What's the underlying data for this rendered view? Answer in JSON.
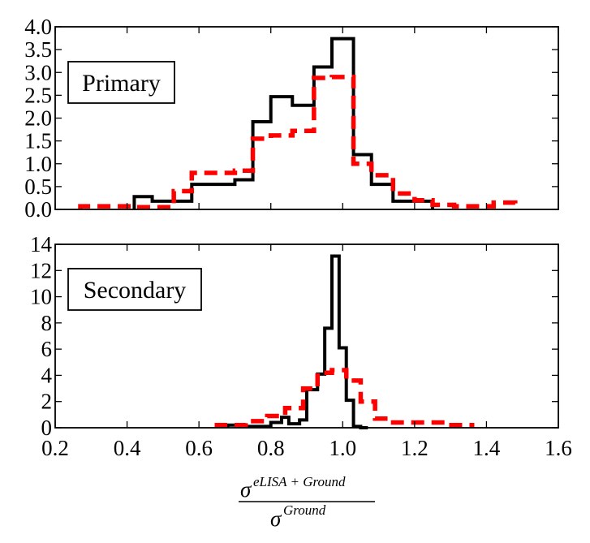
{
  "chart_data": [
    {
      "type": "histogram",
      "panel": "top",
      "legend_label": "Primary",
      "xlim": [
        0.2,
        1.6
      ],
      "ylim": [
        0.0,
        4.0
      ],
      "yticks": [
        "0.0",
        "0.5",
        "1.0",
        "1.5",
        "2.0",
        "2.5",
        "3.0",
        "3.5",
        "4.0"
      ],
      "ytick_values": [
        0.0,
        0.5,
        1.0,
        1.5,
        2.0,
        2.5,
        3.0,
        3.5,
        4.0
      ],
      "series": [
        {
          "name": "eLISA+Ground (solid)",
          "color": "#000000",
          "style": "solid",
          "edges": [
            0.42,
            0.47,
            0.53,
            0.58,
            0.64,
            0.7,
            0.75,
            0.8,
            0.86,
            0.92,
            0.97,
            1.03,
            1.08,
            1.14,
            1.2,
            1.25
          ],
          "values": [
            0.28,
            0.18,
            0.18,
            0.55,
            0.55,
            0.65,
            1.92,
            2.47,
            2.28,
            3.12,
            3.74,
            1.2,
            0.55,
            0.18,
            0.18
          ]
        },
        {
          "name": "Ground (dashed)",
          "color": "#ff0000",
          "style": "dashed",
          "edges": [
            0.27,
            0.37,
            0.42,
            0.47,
            0.53,
            0.58,
            0.64,
            0.7,
            0.75,
            0.8,
            0.86,
            0.92,
            0.97,
            1.03,
            1.08,
            1.14,
            1.2,
            1.25,
            1.31,
            1.37,
            1.42,
            1.48
          ],
          "values": [
            0.07,
            0.07,
            0.05,
            0.05,
            0.4,
            0.8,
            0.8,
            0.85,
            1.55,
            1.62,
            1.72,
            2.88,
            2.9,
            1.0,
            0.75,
            0.35,
            0.2,
            0.1,
            0.07,
            0.07,
            0.15
          ]
        }
      ]
    },
    {
      "type": "histogram",
      "panel": "bottom",
      "legend_label": "Secondary",
      "xlim": [
        0.2,
        1.6
      ],
      "ylim": [
        0,
        14
      ],
      "yticks": [
        "0",
        "2",
        "4",
        "6",
        "8",
        "10",
        "12",
        "14"
      ],
      "ytick_values": [
        0,
        2,
        4,
        6,
        8,
        10,
        12,
        14
      ],
      "xticks": [
        "0.2",
        "0.4",
        "0.6",
        "0.8",
        "1.0",
        "1.2",
        "1.4",
        "1.6"
      ],
      "xtick_values": [
        0.2,
        0.4,
        0.6,
        0.8,
        1.0,
        1.2,
        1.4,
        1.6
      ],
      "series": [
        {
          "name": "eLISA+Ground (solid)",
          "color": "#000000",
          "style": "solid",
          "edges": [
            0.68,
            0.72,
            0.8,
            0.83,
            0.85,
            0.88,
            0.9,
            0.93,
            0.95,
            0.97,
            0.99,
            1.01,
            1.03,
            1.05,
            1.07
          ],
          "values": [
            0.2,
            0.1,
            0.4,
            0.8,
            0.3,
            0.6,
            2.9,
            4.1,
            7.6,
            13.1,
            6.1,
            2.1,
            0.1,
            0.0
          ]
        },
        {
          "name": "Ground (dashed)",
          "color": "#ff0000",
          "style": "dashed",
          "edges": [
            0.65,
            0.73,
            0.79,
            0.84,
            0.89,
            0.93,
            0.97,
            1.01,
            1.05,
            1.09,
            1.13,
            1.19,
            1.29,
            1.36
          ],
          "values": [
            0.2,
            0.5,
            0.9,
            1.5,
            3.0,
            4.2,
            4.4,
            3.6,
            2.0,
            0.7,
            0.4,
            0.4,
            0.2
          ]
        }
      ]
    }
  ],
  "xlabel": {
    "numerator_symbol": "σ",
    "numerator_superscript": "eLISA + Ground",
    "denominator_symbol": "σ",
    "denominator_superscript": "Ground"
  }
}
